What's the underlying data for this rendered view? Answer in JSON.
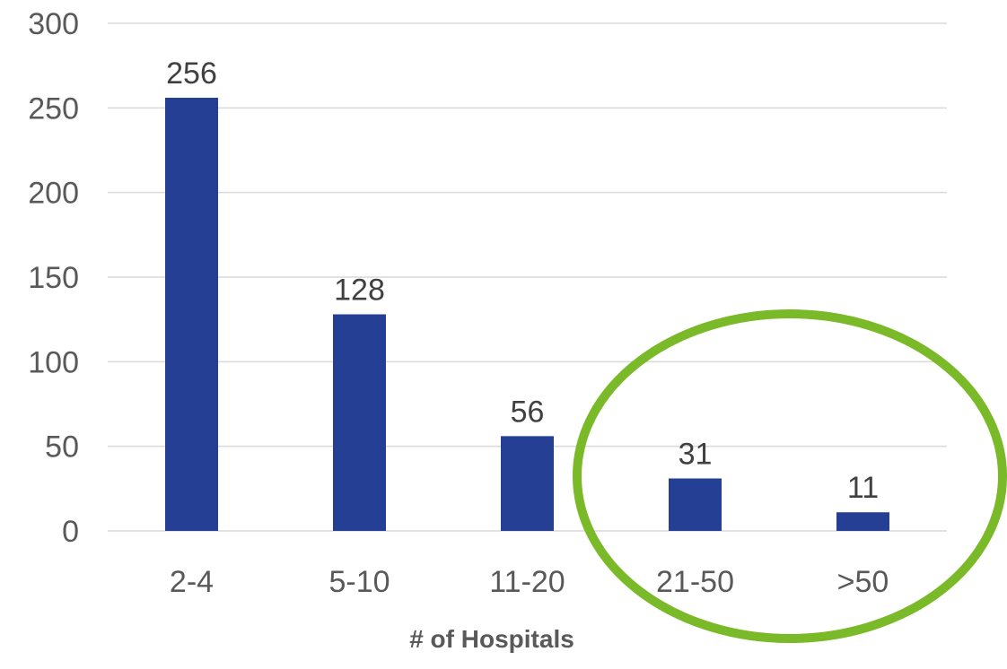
{
  "chart_data": {
    "type": "bar",
    "title": "",
    "xlabel": "# of Hospitals",
    "ylabel": "",
    "categories": [
      "2-4",
      "5-10",
      "11-20",
      "21-50",
      ">50"
    ],
    "values": [
      256,
      128,
      56,
      31,
      11
    ],
    "ylim": [
      0,
      300
    ],
    "yticks": [
      0,
      50,
      100,
      150,
      200,
      250,
      300
    ],
    "grid": true,
    "data_labels": true,
    "legend": "none",
    "bar_color": "#243F93",
    "highlight_color": "#7AB928",
    "highlighted_categories": [
      "21-50",
      ">50"
    ]
  }
}
